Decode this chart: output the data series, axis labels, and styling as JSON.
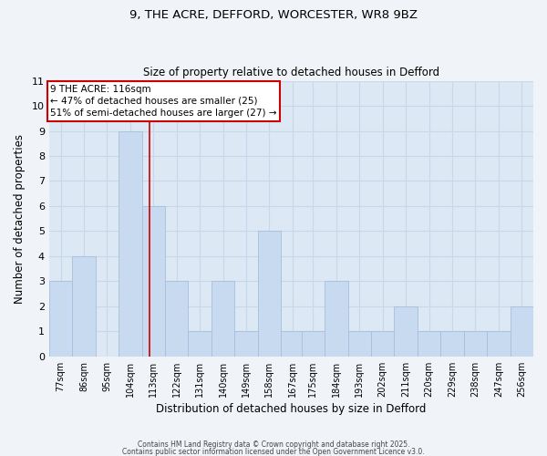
{
  "title_line1": "9, THE ACRE, DEFFORD, WORCESTER, WR8 9BZ",
  "title_line2": "Size of property relative to detached houses in Defford",
  "xlabel": "Distribution of detached houses by size in Defford",
  "ylabel": "Number of detached properties",
  "bin_labels": [
    "77sqm",
    "86sqm",
    "95sqm",
    "104sqm",
    "113sqm",
    "122sqm",
    "131sqm",
    "140sqm",
    "149sqm",
    "158sqm",
    "167sqm",
    "175sqm",
    "184sqm",
    "193sqm",
    "202sqm",
    "211sqm",
    "220sqm",
    "229sqm",
    "238sqm",
    "247sqm",
    "256sqm"
  ],
  "bin_edges": [
    77,
    86,
    95,
    104,
    113,
    122,
    131,
    140,
    149,
    158,
    167,
    175,
    184,
    193,
    202,
    211,
    220,
    229,
    238,
    247,
    256
  ],
  "values": [
    3,
    4,
    0,
    9,
    6,
    3,
    1,
    3,
    1,
    5,
    1,
    1,
    3,
    1,
    1,
    2,
    1,
    1,
    1,
    1,
    2
  ],
  "bar_color": "#c8daf0",
  "bar_edge_color": "#a8bedd",
  "grid_color": "#c8d8ec",
  "bg_color": "#e8f0f8",
  "plot_bg": "#dce8f4",
  "red_line_x": 116,
  "annotation_title": "9 THE ACRE: 116sqm",
  "annotation_line1": "← 47% of detached houses are smaller (25)",
  "annotation_line2": "51% of semi-detached houses are larger (27) →",
  "annotation_box_color": "#ffffff",
  "annotation_border_color": "#cc0000",
  "ylim": [
    0,
    11
  ],
  "yticks": [
    0,
    1,
    2,
    3,
    4,
    5,
    6,
    7,
    8,
    9,
    10,
    11
  ],
  "footer1": "Contains HM Land Registry data © Crown copyright and database right 2025.",
  "footer2": "Contains public sector information licensed under the Open Government Licence v3.0."
}
